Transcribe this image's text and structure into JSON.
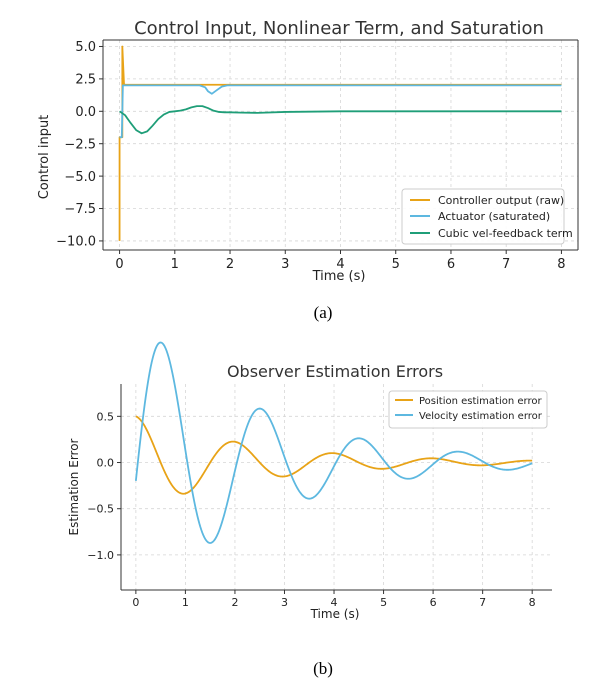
{
  "colors": {
    "orange": "#E8A317",
    "blue": "#5DB8E0",
    "green": "#1F9E78",
    "grid": "#d6d6d6",
    "axis": "#333333"
  },
  "chart_data": [
    {
      "type": "line",
      "title": "Control Input, Nonlinear Term, and Saturation",
      "xlabel": "Time (s)",
      "ylabel": "Control input",
      "xlim": [
        -0.3,
        8.3
      ],
      "ylim": [
        -10.7,
        5.5
      ],
      "xticks": [
        0,
        1,
        2,
        3,
        4,
        5,
        6,
        7,
        8
      ],
      "xtick_labels": [
        "0",
        "1",
        "2",
        "3",
        "4",
        "5",
        "6",
        "7",
        "8"
      ],
      "yticks": [
        5.0,
        2.5,
        0.0,
        -2.5,
        -5.0,
        -7.5,
        -10.0
      ],
      "ytick_labels": [
        "5.0",
        "2.5",
        "0.0",
        "−2.5",
        "−5.0",
        "−7.5",
        "−10.0"
      ],
      "grid": true,
      "legend_position": "bottom-right",
      "caption": "(a)",
      "series": [
        {
          "name": "Controller output (raw)",
          "color": "#E8A317",
          "x": [
            0,
            0,
            0.02,
            0.05,
            0.05,
            0.08,
            0.1,
            0.6,
            1.0,
            1.5,
            2.0,
            3.0,
            5.0,
            8.0
          ],
          "y": [
            -10.0,
            -2.0,
            -2.0,
            -2.0,
            5.0,
            2.1,
            2.05,
            2.05,
            2.05,
            2.05,
            2.05,
            2.05,
            2.05,
            2.05
          ]
        },
        {
          "name": "Actuator (saturated)",
          "color": "#5DB8E0",
          "x": [
            0,
            0.04,
            0.06,
            0.1,
            0.5,
            1.0,
            1.45,
            1.55,
            1.6,
            1.67,
            1.75,
            1.85,
            1.95,
            2.5,
            4.0,
            8.0
          ],
          "y": [
            -2.0,
            -2.0,
            2.0,
            2.0,
            2.0,
            2.0,
            2.0,
            1.85,
            1.55,
            1.35,
            1.6,
            1.9,
            2.0,
            2.0,
            2.0,
            2.0
          ]
        },
        {
          "name": "Cubic vel-feedback term",
          "color": "#1F9E78",
          "x": [
            0,
            0.1,
            0.2,
            0.3,
            0.4,
            0.5,
            0.6,
            0.7,
            0.8,
            0.9,
            1.0,
            1.1,
            1.2,
            1.3,
            1.4,
            1.5,
            1.6,
            1.7,
            1.8,
            1.9,
            2.0,
            2.2,
            2.5,
            3.0,
            4.0,
            6.0,
            8.0
          ],
          "y": [
            0.0,
            -0.3,
            -0.9,
            -1.45,
            -1.7,
            -1.55,
            -1.1,
            -0.6,
            -0.25,
            -0.05,
            0.0,
            0.05,
            0.15,
            0.3,
            0.4,
            0.4,
            0.25,
            0.05,
            -0.05,
            -0.08,
            -0.08,
            -0.1,
            -0.12,
            -0.05,
            0.0,
            0.0,
            0.0
          ]
        }
      ]
    },
    {
      "type": "line",
      "title": "Observer Estimation Errors",
      "xlabel": "Time (s)",
      "ylabel": "Estimation Error",
      "xlim": [
        -0.3,
        8.4
      ],
      "ylim": [
        -1.38,
        0.85
      ],
      "xticks": [
        0,
        1,
        2,
        3,
        4,
        5,
        6,
        7,
        8
      ],
      "xtick_labels": [
        "0",
        "1",
        "2",
        "3",
        "4",
        "5",
        "6",
        "7",
        "8"
      ],
      "yticks": [
        0.5,
        0.0,
        -0.5,
        -1.0
      ],
      "ytick_labels": [
        "0.5",
        "0.0",
        "−0.5",
        "−1.0"
      ],
      "grid": true,
      "legend_position": "top-right",
      "caption": "(b)",
      "series": [
        {
          "name": "Position estimation error",
          "color": "#E8A317",
          "model": {
            "amplitude": 0.5,
            "decay": 0.4,
            "omega": 3.1416,
            "phase": 0.0,
            "t_end": 8.0
          }
        },
        {
          "name": "Velocity estimation error",
          "color": "#5DB8E0",
          "model": {
            "amplitude": 1.6,
            "decay": 0.4,
            "omega": 3.1416,
            "phase": -1.6952,
            "t_end": 8.0
          }
        }
      ]
    }
  ]
}
